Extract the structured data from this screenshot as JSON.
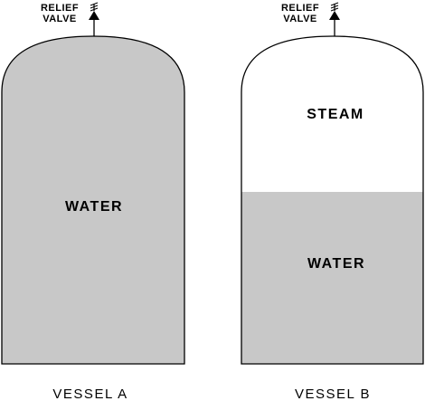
{
  "colors": {
    "fluid": "#c8c8c8",
    "outline": "#000000",
    "background": "#ffffff"
  },
  "vessel_a": {
    "name": "VESSEL A",
    "valve_label_line1": "RELIEF",
    "valve_label_line2": "VALVE",
    "content_label": "WATER"
  },
  "vessel_b": {
    "name": "VESSEL B",
    "valve_label_line1": "RELIEF",
    "valve_label_line2": "VALVE",
    "upper_label": "STEAM",
    "lower_label": "WATER"
  }
}
